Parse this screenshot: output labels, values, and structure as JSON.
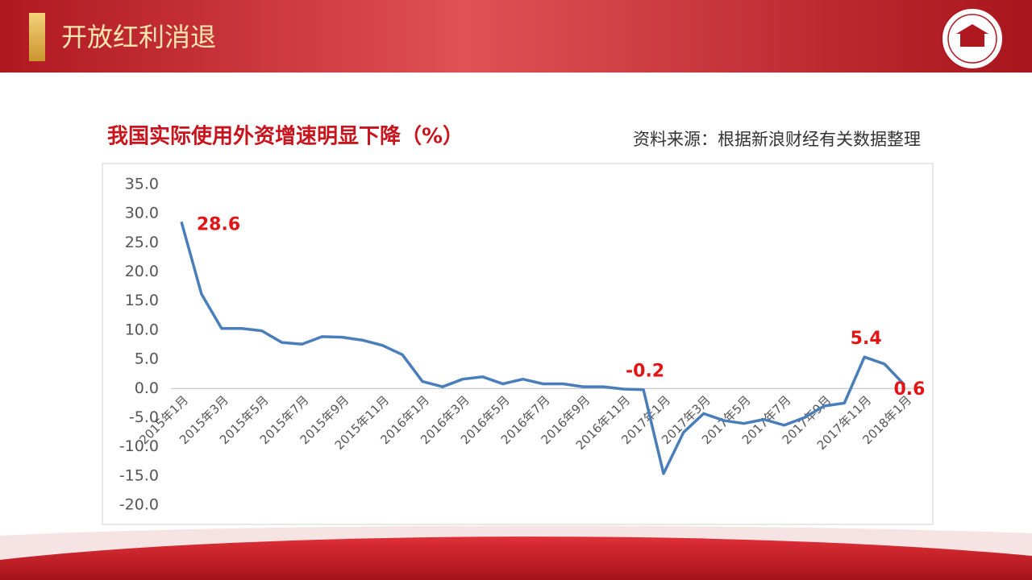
{
  "header": {
    "title": "开放红利消退"
  },
  "chart_data": {
    "type": "line",
    "title": "我国实际使用外资增速明显下降（%）",
    "source": "资料来源：根据新浪财经有关数据整理",
    "categories": [
      "2015年1月",
      null,
      "2015年3月",
      null,
      "2015年5月",
      null,
      "2015年7月",
      null,
      "2015年9月",
      null,
      "2015年11月",
      null,
      "2016年1月",
      null,
      "2016年3月",
      null,
      "2016年5月",
      null,
      "2016年7月",
      null,
      "2016年9月",
      null,
      "2016年11月",
      null,
      "2017年1月",
      null,
      "2017年3月",
      null,
      "2017年5月",
      null,
      "2017年7月",
      null,
      "2017年9月",
      null,
      "2017年11月",
      null,
      "2018年1月"
    ],
    "values": [
      28.6,
      16.2,
      10.3,
      10.3,
      9.9,
      7.9,
      7.6,
      8.9,
      8.8,
      8.3,
      7.4,
      5.8,
      1.2,
      0.3,
      1.6,
      2.0,
      0.8,
      1.6,
      0.8,
      0.8,
      0.3,
      0.3,
      -0.1,
      -0.2,
      -14.6,
      -7.5,
      -4.3,
      -5.5,
      -6.0,
      -5.3,
      -6.3,
      -5.0,
      -3.0,
      -2.5,
      5.4,
      4.2,
      0.6
    ],
    "value_labels": [
      "28.6",
      null,
      null,
      null,
      null,
      null,
      null,
      null,
      null,
      null,
      null,
      null,
      null,
      null,
      null,
      null,
      null,
      null,
      null,
      null,
      null,
      null,
      null,
      "-0.2",
      null,
      null,
      null,
      null,
      null,
      null,
      null,
      null,
      null,
      null,
      "5.4",
      null,
      "0.6"
    ],
    "color": "#4a7ebb",
    "label_color": "#e31414",
    "ylim": [
      -20,
      35
    ],
    "yticks": [
      {
        "value": -20,
        "label": "-20.0"
      },
      {
        "value": -15,
        "label": "-15.0"
      },
      {
        "value": -10,
        "label": "-10.0"
      },
      {
        "value": -5,
        "label": "-5.0"
      },
      {
        "value": 0,
        "label": "0.0"
      },
      {
        "value": 5,
        "label": "5.0"
      },
      {
        "value": 10,
        "label": "10.0"
      },
      {
        "value": 15,
        "label": "15.0"
      },
      {
        "value": 20,
        "label": "20.0"
      },
      {
        "value": 25,
        "label": "25.0"
      },
      {
        "value": 30,
        "label": "30.0"
      },
      {
        "value": 35,
        "label": "35.0"
      }
    ],
    "grid": false
  }
}
